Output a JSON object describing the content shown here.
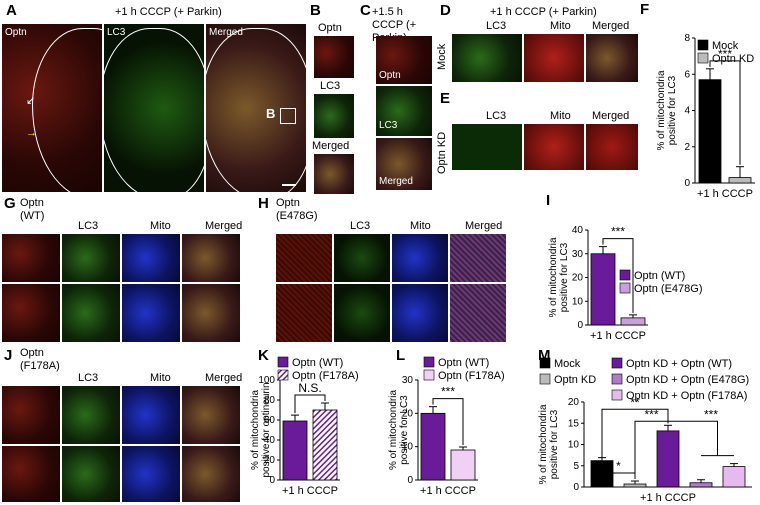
{
  "panels": {
    "A": {
      "letter": "A",
      "title": "+1 h CCCP (+ Parkin)",
      "ch1": "Optn",
      "ch2": "LC3",
      "ch3": "Merged",
      "inset": "B"
    },
    "B": {
      "letter": "B",
      "ch1": "Optn",
      "ch2": "LC3",
      "ch3": "Merged"
    },
    "C": {
      "letter": "C",
      "title": "+1.5 h CCCP (+ Parkin)",
      "ch1": "Optn",
      "ch2": "LC3",
      "ch3": "Merged"
    },
    "D": {
      "letter": "D",
      "title": "+1 h CCCP (+ Parkin)",
      "ch1": "LC3",
      "ch2": "Mito",
      "ch3": "Merged",
      "row": "Mock"
    },
    "E": {
      "letter": "E",
      "ch1": "LC3",
      "ch2": "Mito",
      "ch3": "Merged",
      "row": "Optn KD"
    },
    "G": {
      "letter": "G",
      "title": "Optn (WT)",
      "ch2": "LC3",
      "ch3": "Mito",
      "ch4": "Merged"
    },
    "H": {
      "letter": "H",
      "title": "Optn (E478G)",
      "ch2": "LC3",
      "ch3": "Mito",
      "ch4": "Merged"
    },
    "J": {
      "letter": "J",
      "title": "Optn (F178A)",
      "ch2": "LC3",
      "ch3": "Mito",
      "ch4": "Merged"
    }
  },
  "chart_data": [
    {
      "panel": "F",
      "type": "bar",
      "categories": [
        "+1 h CCCP"
      ],
      "series": [
        {
          "name": "Mock",
          "values": [
            5.7
          ],
          "color": "#000000"
        },
        {
          "name": "Optn KD",
          "values": [
            0.3
          ],
          "color": "#bbbbbb"
        }
      ],
      "ylabel": "% of mitochondria positive for LC3",
      "xlabel": "+1 h CCCP",
      "ylim": [
        0,
        8
      ],
      "yticks": [
        "0",
        "2",
        "4",
        "6",
        "8"
      ],
      "significance": "***"
    },
    {
      "panel": "I",
      "type": "bar",
      "categories": [
        "+1 h CCCP"
      ],
      "series": [
        {
          "name": "Optn (WT)",
          "values": [
            30
          ],
          "color": "#6a1b9a"
        },
        {
          "name": "Optn (E478G)",
          "values": [
            3
          ],
          "color": "#c9a0dc"
        }
      ],
      "ylabel": "% of mitochondria positive for LC3",
      "xlabel": "+1 h CCCP",
      "ylim": [
        0,
        40
      ],
      "yticks": [
        "0",
        "10",
        "20",
        "30",
        "40"
      ],
      "significance": "***"
    },
    {
      "panel": "K",
      "type": "bar",
      "categories": [
        "+1 h CCCP"
      ],
      "series": [
        {
          "name": "Optn (WT)",
          "values": [
            59
          ],
          "color": "#6a1b9a"
        },
        {
          "name": "Optn (F178A)",
          "values": [
            70
          ],
          "color": "#6a1b9a",
          "hatched": true
        }
      ],
      "ylabel": "% of mitochondria positive for optineurin",
      "xlabel": "+1 h CCCP",
      "ylim": [
        0,
        100
      ],
      "yticks": [
        "0",
        "20",
        "40",
        "60",
        "80",
        "100"
      ],
      "significance": "N.S."
    },
    {
      "panel": "L",
      "type": "bar",
      "categories": [
        "+1 h CCCP"
      ],
      "series": [
        {
          "name": "Optn (WT)",
          "values": [
            20
          ],
          "color": "#6a1b9a"
        },
        {
          "name": "Optn (F178A)",
          "values": [
            9
          ],
          "color": "#f0d0f5"
        }
      ],
      "ylabel": "% of mitochondria positive for LC3",
      "xlabel": "+1 h CCCP",
      "ylim": [
        0,
        30
      ],
      "yticks": [
        "0",
        "10",
        "20",
        "30"
      ],
      "significance": "***"
    },
    {
      "panel": "M",
      "type": "bar",
      "categories": [
        "+1 h CCCP"
      ],
      "series": [
        {
          "name": "Mock",
          "values": [
            6.2
          ],
          "color": "#000000"
        },
        {
          "name": "Optn KD",
          "values": [
            0.7
          ],
          "color": "#bbbbbb"
        },
        {
          "name": "Optn KD + Optn (WT)",
          "values": [
            13.2
          ],
          "color": "#6a1b9a"
        },
        {
          "name": "Optn KD + Optn (E478G)",
          "values": [
            1.0
          ],
          "color": "#b07ac8"
        },
        {
          "name": "Optn KD + Optn (F178A)",
          "values": [
            4.8
          ],
          "color": "#e6b9ef"
        }
      ],
      "ylabel": "% of mitochondria positive for LC3",
      "xlabel": "+1 h CCCP",
      "ylim": [
        0,
        20
      ],
      "yticks": [
        "0",
        "5",
        "10",
        "15",
        "20"
      ],
      "significance": [
        "*",
        "***",
        "**",
        "***"
      ]
    }
  ],
  "scale_bar": "scale-bar"
}
